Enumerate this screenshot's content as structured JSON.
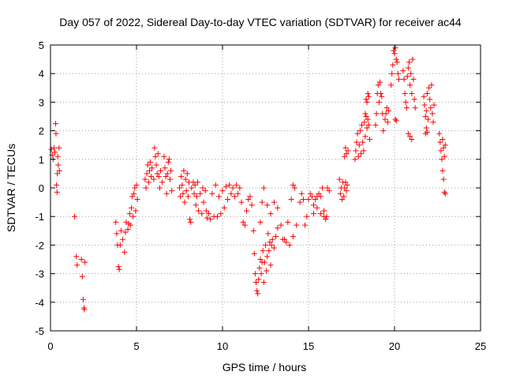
{
  "chart_data": {
    "type": "scatter",
    "title": "Day 057 of 2022, Sidereal Day-to-day VTEC variation (SDTVAR) for receiver ac44",
    "xlabel": "GPS time / hours",
    "ylabel": "SDTVAR / TECUs",
    "xlim": [
      0,
      25
    ],
    "ylim": [
      -5,
      5
    ],
    "xticks": [
      0,
      5,
      10,
      15,
      20,
      25
    ],
    "yticks": [
      -5,
      -4,
      -3,
      -2,
      -1,
      0,
      1,
      2,
      3,
      4,
      5
    ],
    "grid": true,
    "marker": "+",
    "color": "#ff0000",
    "series": [
      {
        "name": "SDTVAR",
        "points": [
          [
            0.05,
            1.35
          ],
          [
            0.1,
            1.15
          ],
          [
            0.15,
            1.0
          ],
          [
            0.2,
            1.4
          ],
          [
            0.25,
            1.25
          ],
          [
            0.3,
            2.25
          ],
          [
            0.32,
            1.9
          ],
          [
            0.35,
            0.1
          ],
          [
            0.38,
            -0.15
          ],
          [
            0.4,
            0.5
          ],
          [
            0.42,
            1.1
          ],
          [
            0.45,
            0.8
          ],
          [
            0.5,
            1.4
          ],
          [
            0.52,
            0.6
          ],
          [
            1.4,
            -1.0
          ],
          [
            1.5,
            -2.4
          ],
          [
            1.55,
            -2.7
          ],
          [
            1.8,
            -2.5
          ],
          [
            1.85,
            -3.1
          ],
          [
            1.9,
            -3.9
          ],
          [
            1.95,
            -4.2
          ],
          [
            1.97,
            -4.25
          ],
          [
            2.0,
            -2.6
          ],
          [
            3.8,
            -1.2
          ],
          [
            3.85,
            -1.6
          ],
          [
            3.9,
            -2.0
          ],
          [
            3.95,
            -2.75
          ],
          [
            4.0,
            -2.85
          ],
          [
            4.05,
            -2.0
          ],
          [
            4.1,
            -1.5
          ],
          [
            4.2,
            -1.8
          ],
          [
            4.3,
            -2.25
          ],
          [
            4.35,
            -1.55
          ],
          [
            4.4,
            -1.2
          ],
          [
            4.5,
            -1.45
          ],
          [
            4.55,
            -1.25
          ],
          [
            4.6,
            -0.9
          ],
          [
            4.65,
            -1.3
          ],
          [
            4.7,
            -0.7
          ],
          [
            4.75,
            -0.3
          ],
          [
            4.8,
            -1.0
          ],
          [
            4.85,
            -0.2
          ],
          [
            4.9,
            0.0
          ],
          [
            4.95,
            -0.8
          ],
          [
            5.0,
            0.1
          ],
          [
            5.05,
            -0.4
          ],
          [
            5.5,
            0.3
          ],
          [
            5.55,
            0.0
          ],
          [
            5.6,
            0.5
          ],
          [
            5.65,
            0.8
          ],
          [
            5.7,
            0.2
          ],
          [
            5.75,
            0.6
          ],
          [
            5.8,
            0.9
          ],
          [
            5.85,
            0.4
          ],
          [
            5.9,
            0.7
          ],
          [
            6.0,
            0.3
          ],
          [
            6.05,
            1.4
          ],
          [
            6.1,
            1.1
          ],
          [
            6.15,
            0.8
          ],
          [
            6.2,
            0.5
          ],
          [
            6.25,
            1.2
          ],
          [
            6.3,
            0.4
          ],
          [
            6.35,
            0.0
          ],
          [
            6.4,
            0.6
          ],
          [
            6.5,
            0.2
          ],
          [
            6.6,
            1.1
          ],
          [
            6.65,
            0.7
          ],
          [
            6.7,
            0.4
          ],
          [
            6.75,
            -0.2
          ],
          [
            6.8,
            0.5
          ],
          [
            6.85,
            0.9
          ],
          [
            6.9,
            1.0
          ],
          [
            6.95,
            0.3
          ],
          [
            7.0,
            0.6
          ],
          [
            7.05,
            -0.1
          ],
          [
            7.5,
            0.0
          ],
          [
            7.55,
            -0.3
          ],
          [
            7.6,
            0.4
          ],
          [
            7.65,
            0.1
          ],
          [
            7.7,
            -0.2
          ],
          [
            7.75,
            0.6
          ],
          [
            7.8,
            -0.5
          ],
          [
            7.85,
            0.3
          ],
          [
            7.9,
            -0.1
          ],
          [
            7.95,
            0.5
          ],
          [
            8.0,
            -0.3
          ],
          [
            8.05,
            0.2
          ],
          [
            8.1,
            -1.1
          ],
          [
            8.15,
            -1.2
          ],
          [
            8.2,
            0.0
          ],
          [
            8.3,
            0.2
          ],
          [
            8.35,
            -0.2
          ],
          [
            8.4,
            0.1
          ],
          [
            8.45,
            -0.6
          ],
          [
            8.5,
            -0.3
          ],
          [
            8.55,
            0.2
          ],
          [
            8.6,
            -0.8
          ],
          [
            8.7,
            -0.2
          ],
          [
            8.8,
            -0.9
          ],
          [
            8.85,
            0.0
          ],
          [
            8.9,
            -0.5
          ],
          [
            9.0,
            -0.1
          ],
          [
            9.05,
            -0.8
          ],
          [
            9.1,
            -1.05
          ],
          [
            9.2,
            -0.9
          ],
          [
            9.3,
            -1.1
          ],
          [
            9.4,
            -0.2
          ],
          [
            9.5,
            -1.0
          ],
          [
            9.6,
            0.1
          ],
          [
            9.7,
            -1.0
          ],
          [
            9.8,
            -0.3
          ],
          [
            9.9,
            -0.9
          ],
          [
            10.0,
            -0.1
          ],
          [
            10.1,
            -0.7
          ],
          [
            10.2,
            0.05
          ],
          [
            10.3,
            -0.4
          ],
          [
            10.4,
            0.1
          ],
          [
            10.5,
            -0.2
          ],
          [
            10.6,
            0.0
          ],
          [
            10.7,
            -0.3
          ],
          [
            10.8,
            0.1
          ],
          [
            10.9,
            -0.2
          ],
          [
            11.0,
            0.0
          ],
          [
            11.1,
            -0.5
          ],
          [
            11.2,
            -1.2
          ],
          [
            11.3,
            -1.3
          ],
          [
            11.4,
            -0.8
          ],
          [
            11.5,
            -0.4
          ],
          [
            11.6,
            -0.3
          ],
          [
            11.7,
            -0.6
          ],
          [
            11.8,
            -1.5
          ],
          [
            11.85,
            -2.3
          ],
          [
            11.9,
            -3.0
          ],
          [
            11.95,
            -3.3
          ],
          [
            12.0,
            -3.6
          ],
          [
            12.05,
            -3.7
          ],
          [
            12.1,
            -3.2
          ],
          [
            12.15,
            -2.8
          ],
          [
            12.2,
            -2.5
          ],
          [
            12.25,
            -3.0
          ],
          [
            12.3,
            -2.6
          ],
          [
            12.35,
            -2.2
          ],
          [
            12.4,
            -3.3
          ],
          [
            12.45,
            -2.6
          ],
          [
            12.5,
            -2.0
          ],
          [
            12.55,
            -2.9
          ],
          [
            12.6,
            -2.4
          ],
          [
            12.65,
            -1.6
          ],
          [
            12.7,
            -2.2
          ],
          [
            12.75,
            -1.9
          ],
          [
            12.8,
            -2.7
          ],
          [
            12.85,
            -2.0
          ],
          [
            12.9,
            -1.8
          ],
          [
            13.0,
            -2.1
          ],
          [
            13.1,
            -1.7
          ],
          [
            13.2,
            -1.4
          ],
          [
            12.2,
            -1.2
          ],
          [
            12.3,
            -0.5
          ],
          [
            12.4,
            0.0
          ],
          [
            12.6,
            -0.6
          ],
          [
            12.8,
            -0.9
          ],
          [
            13.0,
            -0.5
          ],
          [
            13.2,
            -0.7
          ],
          [
            13.4,
            -1.3
          ],
          [
            13.6,
            -1.8
          ],
          [
            13.8,
            -1.2
          ],
          [
            14.0,
            -0.4
          ],
          [
            14.1,
            0.1
          ],
          [
            14.2,
            0.0
          ],
          [
            13.5,
            -1.8
          ],
          [
            13.7,
            -1.9
          ],
          [
            13.9,
            -2.0
          ],
          [
            14.1,
            -1.7
          ],
          [
            14.3,
            -1.3
          ],
          [
            14.5,
            -0.5
          ],
          [
            14.6,
            -0.2
          ],
          [
            14.7,
            -0.4
          ],
          [
            14.8,
            -1.3
          ],
          [
            14.9,
            -1.0
          ],
          [
            15.0,
            -0.4
          ],
          [
            15.1,
            -0.2
          ],
          [
            15.2,
            -0.3
          ],
          [
            15.3,
            -0.6
          ],
          [
            15.4,
            -0.4
          ],
          [
            15.5,
            -0.3
          ],
          [
            15.6,
            -0.2
          ],
          [
            15.7,
            -0.3
          ],
          [
            15.8,
            0.0
          ],
          [
            15.9,
            -0.8
          ],
          [
            16.0,
            -1.1
          ],
          [
            16.05,
            -1.0
          ],
          [
            15.3,
            -0.9
          ],
          [
            15.5,
            -0.7
          ],
          [
            15.7,
            -0.9
          ],
          [
            15.9,
            -1.0
          ],
          [
            16.1,
            0.0
          ],
          [
            16.2,
            -0.1
          ],
          [
            16.8,
            0.3
          ],
          [
            16.85,
            -0.2
          ],
          [
            16.9,
            0.0
          ],
          [
            16.95,
            -0.4
          ],
          [
            17.0,
            0.2
          ],
          [
            17.05,
            -0.3
          ],
          [
            17.1,
            0.0
          ],
          [
            17.15,
            0.2
          ],
          [
            17.2,
            -0.1
          ],
          [
            17.25,
            0.1
          ],
          [
            17.1,
            1.1
          ],
          [
            17.15,
            1.4
          ],
          [
            17.2,
            1.2
          ],
          [
            17.3,
            1.3
          ],
          [
            17.7,
            1.0
          ],
          [
            17.75,
            1.3
          ],
          [
            17.8,
            1.6
          ],
          [
            17.85,
            1.9
          ],
          [
            17.9,
            1.1
          ],
          [
            17.95,
            1.5
          ],
          [
            18.0,
            2.0
          ],
          [
            18.05,
            1.2
          ],
          [
            18.1,
            2.2
          ],
          [
            18.15,
            1.6
          ],
          [
            18.2,
            1.3
          ],
          [
            18.25,
            2.3
          ],
          [
            18.3,
            1.8
          ],
          [
            18.35,
            2.5
          ],
          [
            18.4,
            2.1
          ],
          [
            18.45,
            2.4
          ],
          [
            18.5,
            2.2
          ],
          [
            18.55,
            1.7
          ],
          [
            18.3,
            2.6
          ],
          [
            18.35,
            3.1
          ],
          [
            18.4,
            3.0
          ],
          [
            18.45,
            3.3
          ],
          [
            18.5,
            3.2
          ],
          [
            18.9,
            2.2
          ],
          [
            18.95,
            2.6
          ],
          [
            19.0,
            3.3
          ],
          [
            19.05,
            3.6
          ],
          [
            19.1,
            3.0
          ],
          [
            19.15,
            3.7
          ],
          [
            19.2,
            3.3
          ],
          [
            19.25,
            3.2
          ],
          [
            19.3,
            2.6
          ],
          [
            19.35,
            2.0
          ],
          [
            19.45,
            2.4
          ],
          [
            19.5,
            2.6
          ],
          [
            19.55,
            2.8
          ],
          [
            19.6,
            2.3
          ],
          [
            19.65,
            2.7
          ],
          [
            19.8,
            3.6
          ],
          [
            19.85,
            4.0
          ],
          [
            19.9,
            4.3
          ],
          [
            19.95,
            4.8
          ],
          [
            20.0,
            4.7
          ],
          [
            20.05,
            4.9
          ],
          [
            20.1,
            4.5
          ],
          [
            20.15,
            4.4
          ],
          [
            20.2,
            4.0
          ],
          [
            20.25,
            3.8
          ],
          [
            20.05,
            2.4
          ],
          [
            20.1,
            2.35
          ],
          [
            20.5,
            4.1
          ],
          [
            20.55,
            3.8
          ],
          [
            20.6,
            3.3
          ],
          [
            20.65,
            3.0
          ],
          [
            20.7,
            2.8
          ],
          [
            20.75,
            3.9
          ],
          [
            20.8,
            4.2
          ],
          [
            20.85,
            4.4
          ],
          [
            20.9,
            3.6
          ],
          [
            20.95,
            4.0
          ],
          [
            21.0,
            3.3
          ],
          [
            21.05,
            4.5
          ],
          [
            21.1,
            3.8
          ],
          [
            21.15,
            3.1
          ],
          [
            21.2,
            2.8
          ],
          [
            20.8,
            1.9
          ],
          [
            20.9,
            1.8
          ],
          [
            21.0,
            1.7
          ],
          [
            21.7,
            3.2
          ],
          [
            21.75,
            2.9
          ],
          [
            21.8,
            2.5
          ],
          [
            21.85,
            2.7
          ],
          [
            21.9,
            3.3
          ],
          [
            21.95,
            2.4
          ],
          [
            22.0,
            3.5
          ],
          [
            22.05,
            3.1
          ],
          [
            22.1,
            2.8
          ],
          [
            22.15,
            3.6
          ],
          [
            22.2,
            2.6
          ],
          [
            22.25,
            2.3
          ],
          [
            22.3,
            2.9
          ],
          [
            21.8,
            1.9
          ],
          [
            21.85,
            2.1
          ],
          [
            21.9,
            1.95
          ],
          [
            22.6,
            1.9
          ],
          [
            22.65,
            1.6
          ],
          [
            22.7,
            1.3
          ],
          [
            22.75,
            1.0
          ],
          [
            22.8,
            1.7
          ],
          [
            22.85,
            1.4
          ],
          [
            22.9,
            1.1
          ],
          [
            22.95,
            1.5
          ],
          [
            22.8,
            0.6
          ],
          [
            22.85,
            0.3
          ],
          [
            22.9,
            -0.15
          ],
          [
            22.95,
            -0.2
          ]
        ]
      }
    ]
  }
}
